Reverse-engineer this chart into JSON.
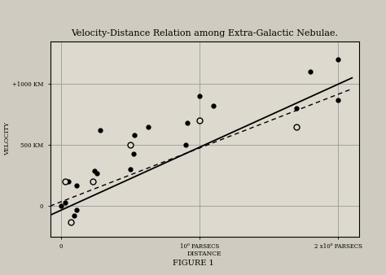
{
  "title": "Velocity-Distance Relation among Extra-Galactic Nebulae.",
  "xlabel": "DISTANCE",
  "ylabel": "VELOCITY",
  "figure_label": "FIGURE 1",
  "xlim": [
    -0.08,
    2.15
  ],
  "ylim": [
    -250,
    1350
  ],
  "yticks": [
    0,
    500,
    1000
  ],
  "ytick_labels": [
    "0",
    "500 KM",
    "+1000 KM"
  ],
  "xticks": [
    0,
    1.0,
    2.0
  ],
  "xtick_labels": [
    "0",
    "10⁶ PARSECS",
    "2 x10⁶ PARSECS"
  ],
  "grid_color": "#999999",
  "bg_color": "#ddd9cf",
  "paper_color": "#d0cbc0",
  "solid_dots": [
    [
      0.0,
      0
    ],
    [
      0.03,
      30
    ],
    [
      0.05,
      200
    ],
    [
      0.09,
      -80
    ],
    [
      0.11,
      -30
    ],
    [
      0.11,
      170
    ],
    [
      0.24,
      290
    ],
    [
      0.26,
      270
    ],
    [
      0.28,
      620
    ],
    [
      0.5,
      300
    ],
    [
      0.52,
      430
    ],
    [
      0.53,
      580
    ],
    [
      0.63,
      650
    ],
    [
      0.9,
      500
    ],
    [
      0.91,
      680
    ],
    [
      1.0,
      900
    ],
    [
      1.1,
      820
    ],
    [
      1.7,
      800
    ],
    [
      1.8,
      1100
    ],
    [
      2.0,
      870
    ],
    [
      2.0,
      1200
    ]
  ],
  "open_dots": [
    [
      0.03,
      200
    ],
    [
      0.07,
      -130
    ],
    [
      0.23,
      200
    ],
    [
      0.5,
      500
    ],
    [
      1.0,
      700
    ],
    [
      1.7,
      650
    ]
  ],
  "solid_line_x": [
    -0.08,
    2.1
  ],
  "solid_line_y": [
    -75,
    1050
  ],
  "dashed_line_x": [
    -0.08,
    2.1
  ],
  "dashed_line_y": [
    0,
    960
  ]
}
